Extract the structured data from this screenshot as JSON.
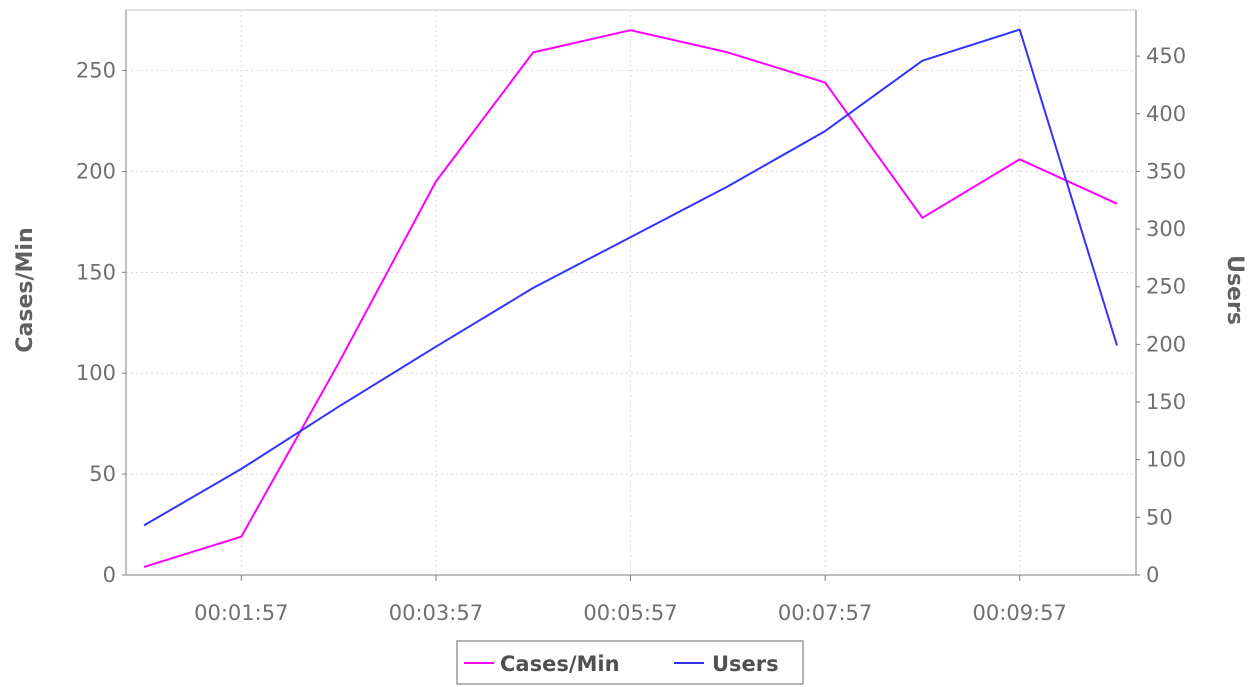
{
  "chart_data": {
    "type": "line",
    "x": [
      "00:00:57",
      "00:01:57",
      "00:02:57",
      "00:03:57",
      "00:04:57",
      "00:05:57",
      "00:06:57",
      "00:07:57",
      "00:08:57",
      "00:09:57",
      "00:10:57"
    ],
    "x_tick_labels": [
      "00:01:57",
      "00:03:57",
      "00:05:57",
      "00:07:57",
      "00:09:57"
    ],
    "series": [
      {
        "name": "Cases/Min",
        "axis": "left",
        "color": "#ff00ff",
        "values": [
          4,
          19,
          105,
          195,
          259,
          270,
          259,
          244,
          177,
          206,
          184
        ]
      },
      {
        "name": "Users",
        "axis": "right",
        "color": "#3333ff",
        "values": [
          43,
          92,
          146,
          198,
          249,
          293,
          337,
          385,
          446,
          473,
          199
        ]
      }
    ],
    "ylabel": "Cases/Min",
    "y2label": "Users",
    "ylim": [
      0,
      280
    ],
    "y2lim": [
      0,
      490
    ],
    "yticks": [
      0,
      50,
      100,
      150,
      200,
      250
    ],
    "y2ticks": [
      0,
      50,
      100,
      150,
      200,
      250,
      300,
      350,
      400,
      450
    ],
    "grid": true,
    "legend": "bottom-center"
  }
}
